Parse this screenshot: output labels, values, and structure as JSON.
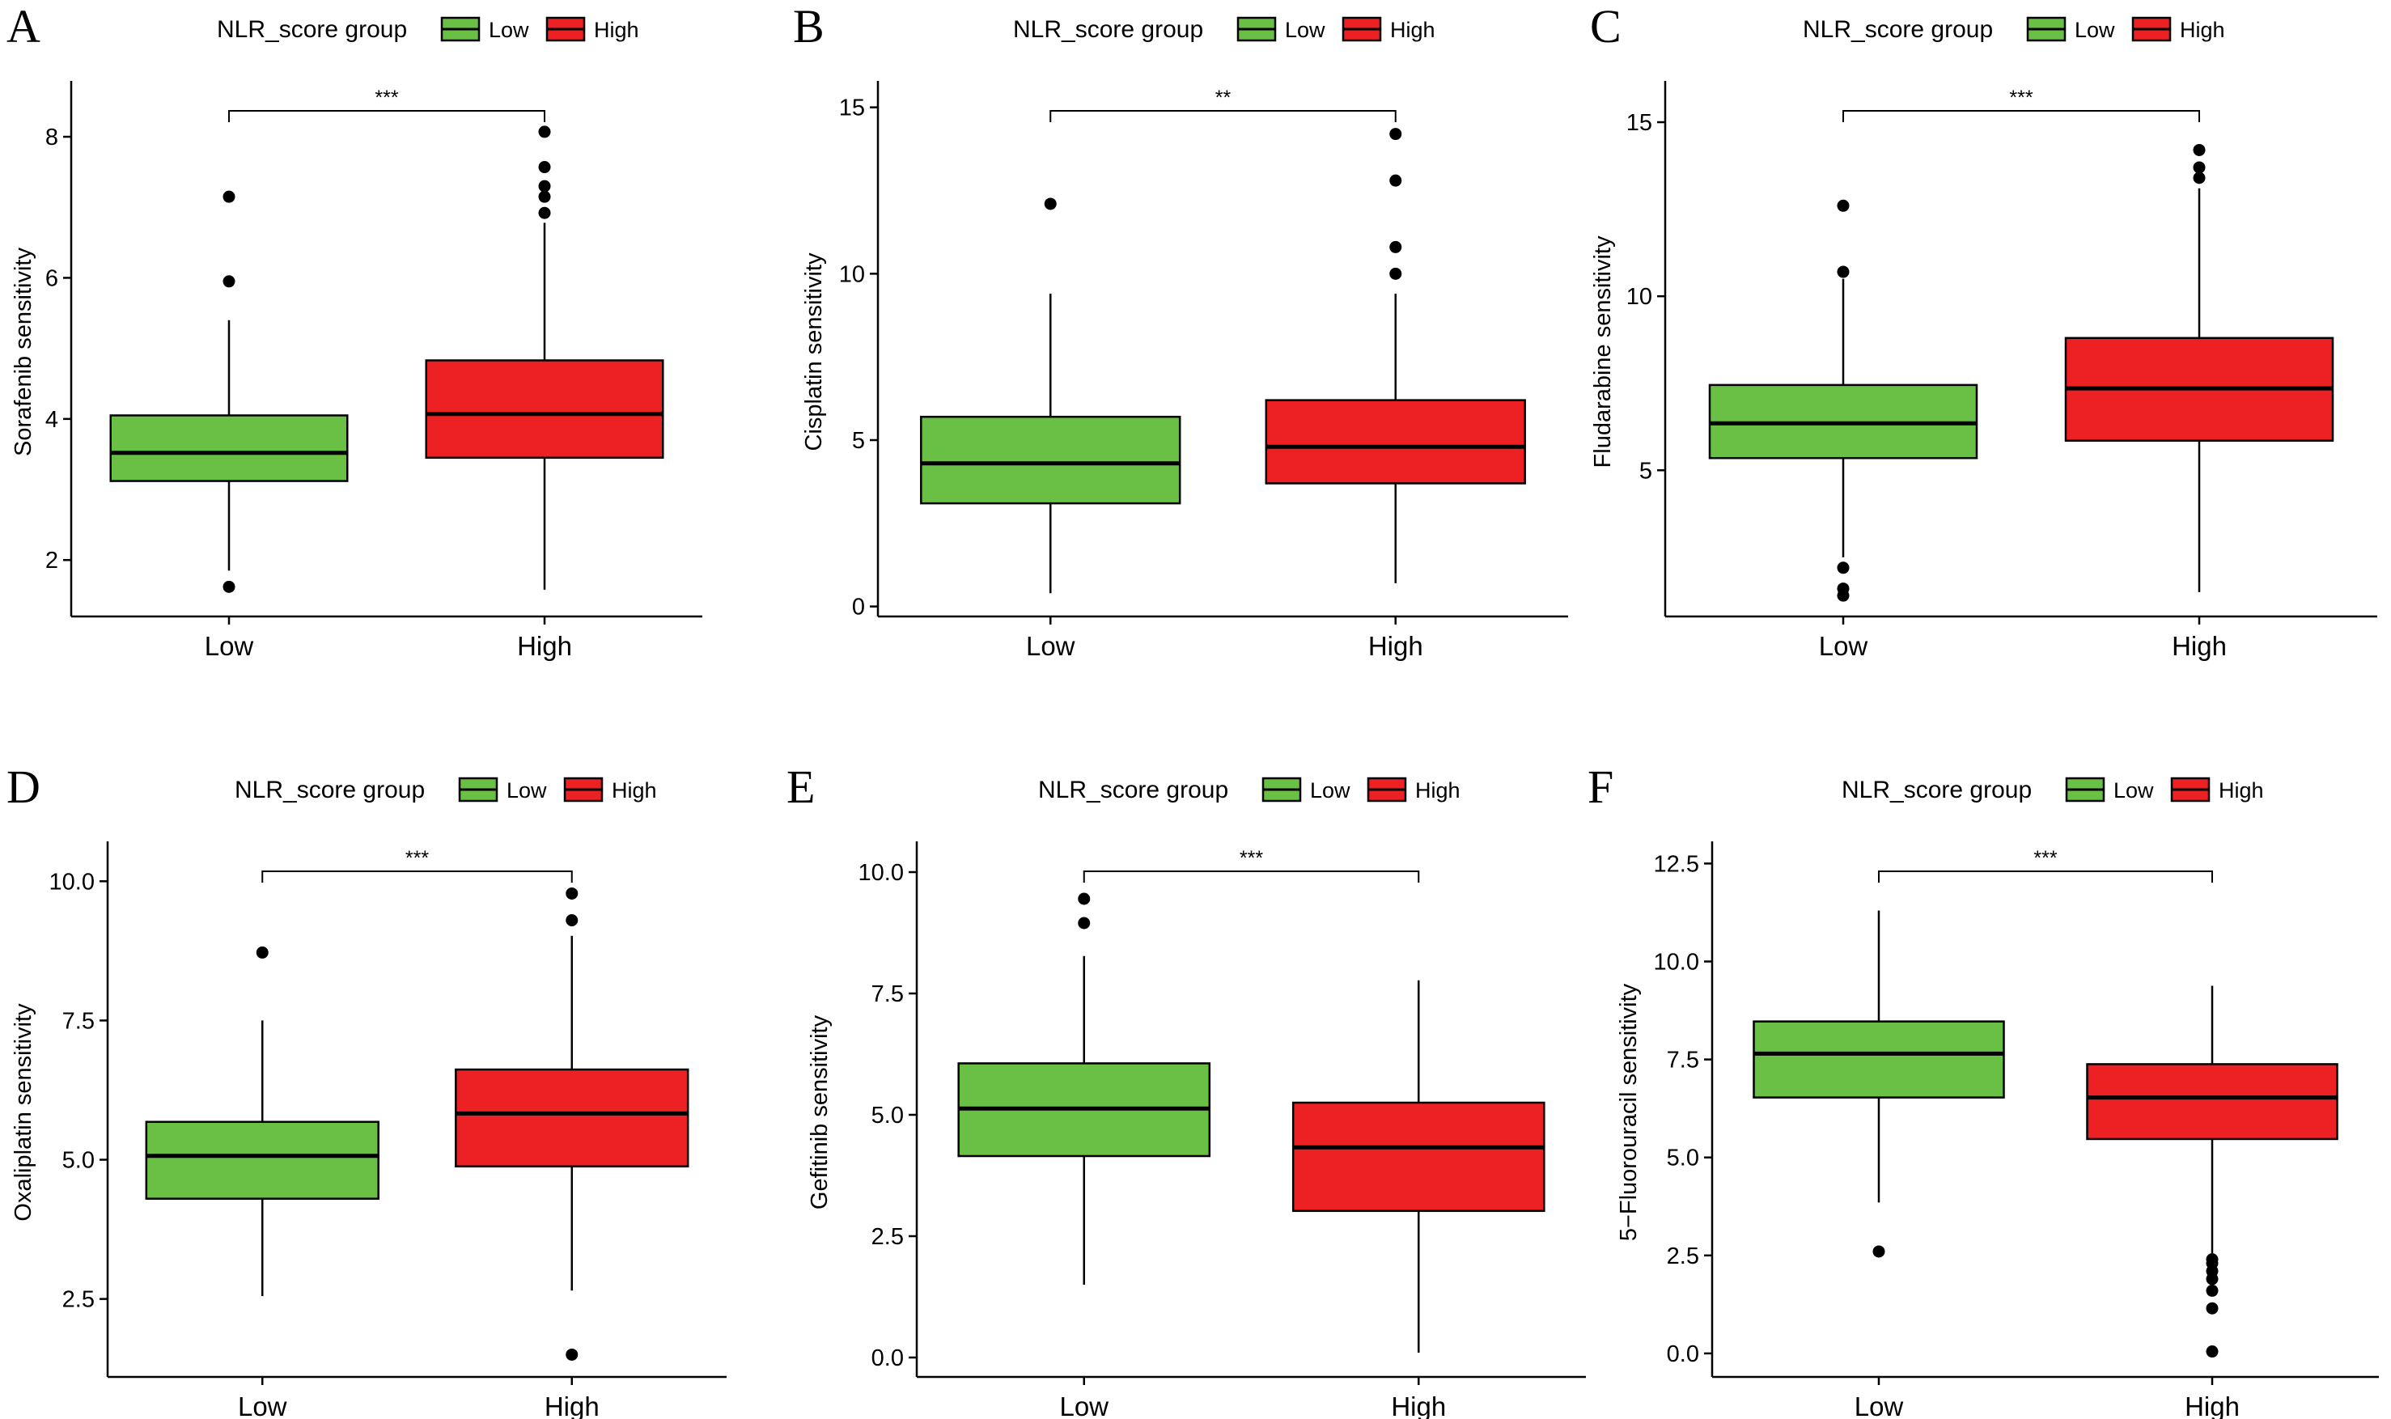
{
  "legend": {
    "title": "NLR_score group",
    "items": [
      {
        "label": "Low",
        "color": "#6abf45"
      },
      {
        "label": "High",
        "color": "#ed2124"
      }
    ]
  },
  "chart_data": [
    {
      "type": "box",
      "panel": "A",
      "ylabel": "Sorafenib sensitivity",
      "categories": [
        "Low",
        "High"
      ],
      "ylim": [
        1.2,
        8.7
      ],
      "yticks": [
        2,
        4,
        6,
        8
      ],
      "significance": "***",
      "boxes": [
        {
          "group": "Low",
          "whisker_low": 1.85,
          "q1": 3.12,
          "median": 3.52,
          "q3": 4.05,
          "whisker_high": 5.4,
          "outliers": [
            1.62,
            5.95,
            7.15
          ]
        },
        {
          "group": "High",
          "whisker_low": 1.58,
          "q1": 3.45,
          "median": 4.07,
          "q3": 4.83,
          "whisker_high": 6.78,
          "outliers": [
            6.92,
            7.15,
            7.3,
            7.57,
            8.07
          ]
        }
      ]
    },
    {
      "type": "box",
      "panel": "B",
      "ylabel": "Cisplatin sensitivity",
      "categories": [
        "Low",
        "High"
      ],
      "ylim": [
        -0.3,
        15.6
      ],
      "yticks": [
        0,
        5,
        10,
        15
      ],
      "significance": "**",
      "boxes": [
        {
          "group": "Low",
          "whisker_low": 0.4,
          "q1": 3.1,
          "median": 4.3,
          "q3": 5.7,
          "whisker_high": 9.4,
          "outliers": [
            12.1
          ]
        },
        {
          "group": "High",
          "whisker_low": 0.7,
          "q1": 3.7,
          "median": 4.8,
          "q3": 6.2,
          "whisker_high": 9.4,
          "outliers": [
            10.0,
            10.8,
            12.8,
            14.2
          ]
        }
      ]
    },
    {
      "type": "box",
      "panel": "C",
      "ylabel": "Fludarabine sensitivity",
      "categories": [
        "Low",
        "High"
      ],
      "ylim": [
        0.8,
        16.0
      ],
      "yticks": [
        5,
        10,
        15
      ],
      "significance": "***",
      "boxes": [
        {
          "group": "Low",
          "whisker_low": 2.5,
          "q1": 5.35,
          "median": 6.35,
          "q3": 7.45,
          "whisker_high": 10.5,
          "outliers": [
            1.4,
            1.6,
            2.2,
            10.7,
            12.6
          ]
        },
        {
          "group": "High",
          "whisker_low": 1.5,
          "q1": 5.85,
          "median": 7.35,
          "q3": 8.8,
          "whisker_high": 13.1,
          "outliers": [
            13.4,
            13.7,
            14.2
          ]
        }
      ]
    },
    {
      "type": "box",
      "panel": "D",
      "ylabel": "Oxaliplatin sensitivity",
      "categories": [
        "Low",
        "High"
      ],
      "ylim": [
        1.1,
        10.6
      ],
      "yticks": [
        2.5,
        5.0,
        7.5,
        10.0
      ],
      "ytick_labels": [
        "2.5",
        "5.0",
        "7.5",
        "10.0"
      ],
      "significance": "***",
      "boxes": [
        {
          "group": "Low",
          "whisker_low": 2.55,
          "q1": 4.3,
          "median": 5.07,
          "q3": 5.68,
          "whisker_high": 7.5,
          "outliers": [
            8.72
          ]
        },
        {
          "group": "High",
          "whisker_low": 2.65,
          "q1": 4.88,
          "median": 5.83,
          "q3": 6.62,
          "whisker_high": 9.02,
          "outliers": [
            1.5,
            9.3,
            9.78
          ]
        }
      ]
    },
    {
      "type": "box",
      "panel": "E",
      "ylabel": "Gefitinib sensitivity",
      "categories": [
        "Low",
        "High"
      ],
      "ylim": [
        -0.4,
        10.5
      ],
      "yticks": [
        0.0,
        2.5,
        5.0,
        7.5,
        10.0
      ],
      "ytick_labels": [
        "0.0",
        "2.5",
        "5.0",
        "7.5",
        "10.0"
      ],
      "significance": "***",
      "boxes": [
        {
          "group": "Low",
          "whisker_low": 1.5,
          "q1": 4.15,
          "median": 5.13,
          "q3": 6.06,
          "whisker_high": 8.27,
          "outliers": [
            8.95,
            9.45
          ]
        },
        {
          "group": "High",
          "whisker_low": 0.1,
          "q1": 3.02,
          "median": 4.33,
          "q3": 5.25,
          "whisker_high": 7.77,
          "outliers": []
        }
      ]
    },
    {
      "type": "box",
      "panel": "F",
      "ylabel": "5−Fluorouracil sensitivity",
      "categories": [
        "Low",
        "High"
      ],
      "ylim": [
        -0.6,
        12.9
      ],
      "yticks": [
        0.0,
        2.5,
        5.0,
        7.5,
        10.0,
        12.5
      ],
      "ytick_labels": [
        "0.0",
        "2.5",
        "5.0",
        "7.5",
        "10.0",
        "12.5"
      ],
      "significance": "***",
      "boxes": [
        {
          "group": "Low",
          "whisker_low": 3.85,
          "q1": 6.53,
          "median": 7.65,
          "q3": 8.47,
          "whisker_high": 11.3,
          "outliers": [
            2.6
          ]
        },
        {
          "group": "High",
          "whisker_low": 2.55,
          "q1": 5.47,
          "median": 6.53,
          "q3": 7.38,
          "whisker_high": 9.38,
          "outliers": [
            0.05,
            1.15,
            1.6,
            1.9,
            2.1,
            2.3,
            2.4
          ]
        }
      ]
    }
  ]
}
